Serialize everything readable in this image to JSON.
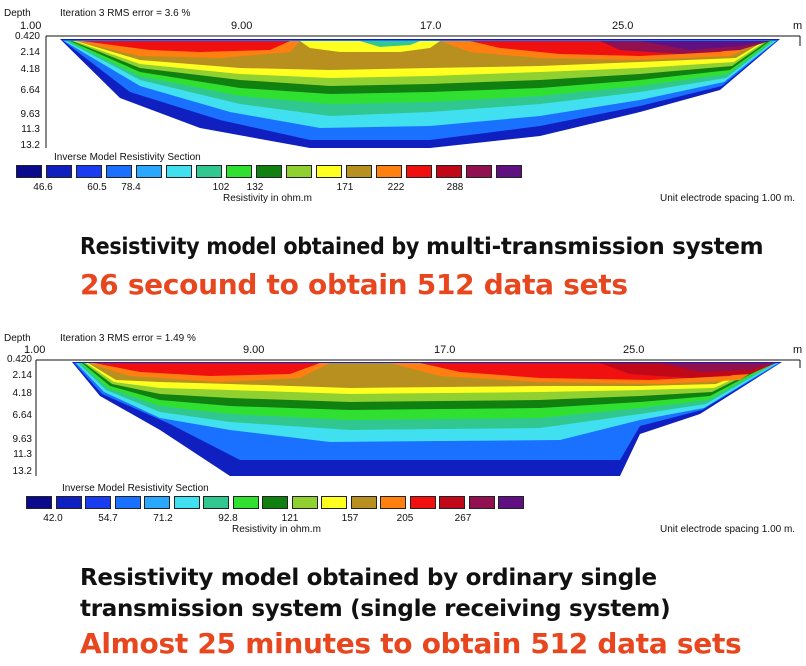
{
  "panels": [
    {
      "depth_label": "Depth",
      "iteration_text": "Iteration 3 RMS error = 3.6 %",
      "x_ticks": [
        "1.00",
        "9.00",
        "17.0",
        "25.0"
      ],
      "x_unit": "m",
      "depths": [
        "0.420",
        "2.14",
        "4.18",
        "6.64",
        "9.63",
        "11.3",
        "13.2"
      ],
      "legend_title": "Inverse Model Resistivity Section",
      "legend_values": [
        "46.6",
        "60.5",
        "78.4",
        "102",
        "132",
        "171",
        "222",
        "288"
      ],
      "legend_axis": "Resistivity in ohm.m",
      "spacing_note": "Unit electrode spacing 1.00 m."
    },
    {
      "depth_label": "Depth",
      "iteration_text": "Iteration 3 RMS error = 1.49 %",
      "x_ticks": [
        "1.00",
        "9.00",
        "17.0",
        "25.0"
      ],
      "x_unit": "m",
      "depths": [
        "0.420",
        "2.14",
        "4.18",
        "6.64",
        "9.63",
        "11.3",
        "13.2"
      ],
      "legend_title": "Inverse Model Resistivity Section",
      "legend_values": [
        "42.0",
        "54.7",
        "71.2",
        "92.8",
        "121",
        "157",
        "205",
        "267"
      ],
      "legend_axis": "Resistivity in ohm.m",
      "spacing_note": "Unit electrode spacing 1.00 m."
    }
  ],
  "legend_colors": [
    "#0a0a8c",
    "#1020c0",
    "#1a3cf0",
    "#1a70ff",
    "#2aa8ff",
    "#40e0f0",
    "#30c890",
    "#30e030",
    "#108010",
    "#90d030",
    "#ffff20",
    "#b89020",
    "#ff8010",
    "#f01010",
    "#c00818",
    "#901050",
    "#601080"
  ],
  "captions": {
    "first_line_normal": "Resistivity model obtained by ",
    "first_line_bold": "multi-transmission system",
    "first_red": "26 secound to obtain 512 data sets",
    "second_line1_normal": "Resistivity model obtained by ordinary ",
    "second_line1_bold": "single",
    "second_line2_bold": "transmission system",
    "second_line2_normal": " (single receiving system)",
    "second_red": "Almost 25 minutes to obtain 512 data sets"
  }
}
